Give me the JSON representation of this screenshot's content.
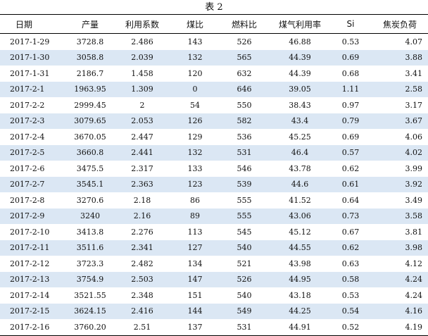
{
  "caption": "表 2",
  "columns": [
    "日期",
    "产量",
    "利用系数",
    "煤比",
    "燃料比",
    "煤气利用率",
    "Si",
    "焦炭负荷"
  ],
  "rows": [
    [
      "2017-1-29",
      "3728.8",
      "2.486",
      "143",
      "526",
      "46.88",
      "0.53",
      "4.07"
    ],
    [
      "2017-1-30",
      "3058.8",
      "2.039",
      "132",
      "565",
      "44.39",
      "0.69",
      "3.88"
    ],
    [
      "2017-1-31",
      "2186.7",
      "1.458",
      "120",
      "632",
      "44.39",
      "0.68",
      "3.41"
    ],
    [
      "2017-2-1",
      "1963.95",
      "1.309",
      "0",
      "646",
      "39.05",
      "1.11",
      "2.58"
    ],
    [
      "2017-2-2",
      "2999.45",
      "2",
      "54",
      "550",
      "38.43",
      "0.97",
      "3.17"
    ],
    [
      "2017-2-3",
      "3079.65",
      "2.053",
      "126",
      "582",
      "43.4",
      "0.79",
      "3.67"
    ],
    [
      "2017-2-4",
      "3670.05",
      "2.447",
      "129",
      "536",
      "45.25",
      "0.69",
      "4.06"
    ],
    [
      "2017-2-5",
      "3660.8",
      "2.441",
      "132",
      "531",
      "46.4",
      "0.57",
      "4.02"
    ],
    [
      "2017-2-6",
      "3475.5",
      "2.317",
      "133",
      "546",
      "43.78",
      "0.62",
      "3.99"
    ],
    [
      "2017-2-7",
      "3545.1",
      "2.363",
      "123",
      "539",
      "44.6",
      "0.61",
      "3.92"
    ],
    [
      "2017-2-8",
      "3270.6",
      "2.18",
      "86",
      "555",
      "41.52",
      "0.64",
      "3.49"
    ],
    [
      "2017-2-9",
      "3240",
      "2.16",
      "89",
      "555",
      "43.06",
      "0.73",
      "3.58"
    ],
    [
      "2017-2-10",
      "3413.8",
      "2.276",
      "113",
      "545",
      "45.12",
      "0.67",
      "3.81"
    ],
    [
      "2017-2-11",
      "3511.6",
      "2.341",
      "127",
      "540",
      "44.55",
      "0.62",
      "3.98"
    ],
    [
      "2017-2-12",
      "3723.3",
      "2.482",
      "134",
      "521",
      "43.98",
      "0.63",
      "4.12"
    ],
    [
      "2017-2-13",
      "3754.9",
      "2.503",
      "147",
      "526",
      "44.95",
      "0.58",
      "4.24"
    ],
    [
      "2017-2-14",
      "3521.55",
      "2.348",
      "151",
      "540",
      "43.18",
      "0.53",
      "4.24"
    ],
    [
      "2017-2-15",
      "3624.15",
      "2.416",
      "144",
      "549",
      "44.25",
      "0.54",
      "4.16"
    ],
    [
      "2017-2-16",
      "3760.20",
      "2.51",
      "137",
      "531",
      "44.91",
      "0.52",
      "4.19"
    ]
  ]
}
